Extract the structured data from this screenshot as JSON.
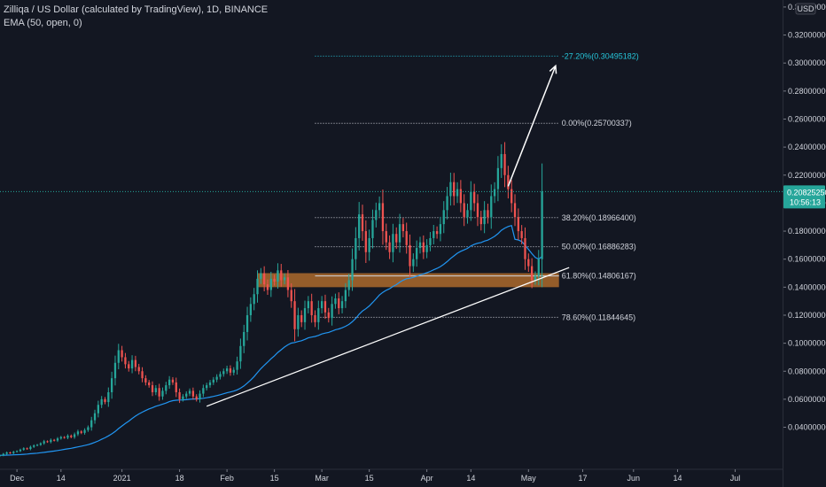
{
  "legend": {
    "title": "Zilliqa / US Dollar (calculated by TradingView), 1D, BINANCE",
    "indicator": "EMA (50, open, 0)"
  },
  "chart_data": {
    "type": "candlestick",
    "currency": "USD",
    "ylim": [
      0.01,
      0.345
    ],
    "y_ticks": [
      {
        "v": 0.04,
        "label": "0.04000000"
      },
      {
        "v": 0.06,
        "label": "0.06000000"
      },
      {
        "v": 0.08,
        "label": "0.08000000"
      },
      {
        "v": 0.1,
        "label": "0.10000000"
      },
      {
        "v": 0.12,
        "label": "0.12000000"
      },
      {
        "v": 0.14,
        "label": "0.14000000"
      },
      {
        "v": 0.16,
        "label": "0.16000000"
      },
      {
        "v": 0.18,
        "label": "0.18000000"
      },
      {
        "v": 0.2,
        "label": "0.20000000"
      },
      {
        "v": 0.22,
        "label": "0.22000000"
      },
      {
        "v": 0.24,
        "label": "0.24000000"
      },
      {
        "v": 0.26,
        "label": "0.26000000"
      },
      {
        "v": 0.28,
        "label": "0.28000000"
      },
      {
        "v": 0.3,
        "label": "0.30000000"
      },
      {
        "v": 0.32,
        "label": "0.32000000"
      },
      {
        "v": 0.34,
        "label": "0.34000000"
      }
    ],
    "x_range": [
      "2020-11-26",
      "2021-07-15"
    ],
    "x_ticks": [
      {
        "date": "2020-12-01",
        "label": "Dec"
      },
      {
        "date": "2020-12-14",
        "label": "14"
      },
      {
        "date": "2021-01-01",
        "label": "2021"
      },
      {
        "date": "2021-01-18",
        "label": "18"
      },
      {
        "date": "2021-02-01",
        "label": "Feb"
      },
      {
        "date": "2021-02-15",
        "label": "15"
      },
      {
        "date": "2021-03-01",
        "label": "Mar"
      },
      {
        "date": "2021-03-15",
        "label": "15"
      },
      {
        "date": "2021-04-01",
        "label": "Apr"
      },
      {
        "date": "2021-04-14",
        "label": "14"
      },
      {
        "date": "2021-05-01",
        "label": "May"
      },
      {
        "date": "2021-05-17",
        "label": "17"
      },
      {
        "date": "2021-06-01",
        "label": "Jun"
      },
      {
        "date": "2021-06-14",
        "label": "14"
      },
      {
        "date": "2021-07-01",
        "label": "Jul"
      }
    ],
    "start_date": "2020-11-26",
    "closes": [
      0.02,
      0.021,
      0.022,
      0.0215,
      0.0225,
      0.023,
      0.024,
      0.025,
      0.0245,
      0.026,
      0.027,
      0.0275,
      0.0285,
      0.03,
      0.0295,
      0.031,
      0.0305,
      0.032,
      0.033,
      0.0325,
      0.034,
      0.033,
      0.035,
      0.037,
      0.036,
      0.038,
      0.04,
      0.045,
      0.05,
      0.056,
      0.06,
      0.058,
      0.065,
      0.075,
      0.086,
      0.095,
      0.09,
      0.085,
      0.082,
      0.088,
      0.083,
      0.08,
      0.075,
      0.072,
      0.07,
      0.065,
      0.068,
      0.062,
      0.066,
      0.07,
      0.074,
      0.072,
      0.065,
      0.06,
      0.062,
      0.064,
      0.066,
      0.062,
      0.06,
      0.064,
      0.068,
      0.07,
      0.072,
      0.074,
      0.076,
      0.078,
      0.08,
      0.082,
      0.079,
      0.081,
      0.087,
      0.098,
      0.108,
      0.12,
      0.128,
      0.135,
      0.146,
      0.15,
      0.142,
      0.138,
      0.146,
      0.144,
      0.152,
      0.145,
      0.147,
      0.138,
      0.13,
      0.11,
      0.12,
      0.115,
      0.125,
      0.13,
      0.12,
      0.115,
      0.125,
      0.13,
      0.122,
      0.118,
      0.128,
      0.132,
      0.125,
      0.13,
      0.138,
      0.145,
      0.16,
      0.175,
      0.192,
      0.18,
      0.165,
      0.175,
      0.188,
      0.195,
      0.2,
      0.18,
      0.172,
      0.165,
      0.178,
      0.172,
      0.185,
      0.18,
      0.17,
      0.155,
      0.16,
      0.168,
      0.172,
      0.165,
      0.17,
      0.175,
      0.18,
      0.178,
      0.185,
      0.195,
      0.205,
      0.215,
      0.205,
      0.21,
      0.2,
      0.19,
      0.195,
      0.208,
      0.2,
      0.19,
      0.185,
      0.195,
      0.19,
      0.205,
      0.21,
      0.225,
      0.235,
      0.22,
      0.21,
      0.2,
      0.19,
      0.18,
      0.175,
      0.16,
      0.155,
      0.145,
      0.148,
      0.16,
      0.2083
    ],
    "ema50": [
      0.02,
      0.02,
      0.0201,
      0.0202,
      0.0203,
      0.0204,
      0.0205,
      0.0207,
      0.0209,
      0.0211,
      0.0213,
      0.0215,
      0.0218,
      0.0221,
      0.0224,
      0.0227,
      0.023,
      0.0234,
      0.0238,
      0.0242,
      0.0246,
      0.025,
      0.0255,
      0.026,
      0.0265,
      0.027,
      0.0276,
      0.0283,
      0.0292,
      0.0302,
      0.0314,
      0.0325,
      0.0338,
      0.0353,
      0.037,
      0.0391,
      0.0409,
      0.0427,
      0.0444,
      0.0463,
      0.048,
      0.0495,
      0.0508,
      0.052,
      0.0531,
      0.054,
      0.055,
      0.0557,
      0.0565,
      0.0573,
      0.0583,
      0.059,
      0.0593,
      0.0594,
      0.0595,
      0.0597,
      0.06,
      0.0602,
      0.0602,
      0.0604,
      0.0607,
      0.0611,
      0.0615,
      0.062,
      0.0626,
      0.0632,
      0.0639,
      0.0646,
      0.0652,
      0.0658,
      0.0667,
      0.0679,
      0.0695,
      0.0715,
      0.0737,
      0.0762,
      0.079,
      0.0818,
      0.0843,
      0.0865,
      0.0889,
      0.091,
      0.0934,
      0.0953,
      0.0973,
      0.0989,
      0.1001,
      0.1005,
      0.1012,
      0.1018,
      0.1027,
      0.1038,
      0.1044,
      0.1048,
      0.1056,
      0.1066,
      0.1072,
      0.1077,
      0.1086,
      0.1096,
      0.1102,
      0.111,
      0.1121,
      0.1134,
      0.1153,
      0.1177,
      0.1207,
      0.123,
      0.1246,
      0.1266,
      0.1291,
      0.1317,
      0.1344,
      0.1363,
      0.1378,
      0.1389,
      0.1405,
      0.1418,
      0.1436,
      0.145,
      0.146,
      0.1464,
      0.147,
      0.1478,
      0.1488,
      0.1495,
      0.1503,
      0.1513,
      0.1524,
      0.1534,
      0.1547,
      0.1563,
      0.1583,
      0.1605,
      0.1623,
      0.1642,
      0.1656,
      0.1666,
      0.1677,
      0.1694,
      0.1706,
      0.1714,
      0.1719,
      0.1729,
      0.1736,
      0.1749,
      0.1763,
      0.1782,
      0.1806,
      0.1822,
      0.1833,
      0.184,
      0.1742,
      0.1737,
      0.1726,
      0.17,
      0.167,
      0.164,
      0.1612,
      0.16,
      0.162
    ],
    "fib_levels": [
      {
        "pct": "-27.20%",
        "value": 0.30495182,
        "label": "-27.20%(0.30495182)",
        "color": "#26c6da",
        "dotted": true
      },
      {
        "pct": "0.00%",
        "value": 0.25700337,
        "label": "0.00%(0.25700337)",
        "color": "#d1d4dc",
        "dotted": true
      },
      {
        "pct": "38.20%",
        "value": 0.189664,
        "label": "38.20%(0.18966400)",
        "color": "#d1d4dc",
        "dotted": true
      },
      {
        "pct": "50.00%",
        "value": 0.16886283,
        "label": "50.00%(0.16886283)",
        "color": "#d1d4dc",
        "dotted": true
      },
      {
        "pct": "61.80%",
        "value": 0.14806167,
        "label": "61.80%(0.14806167)",
        "color": "#d1d4dc",
        "dotted": false
      },
      {
        "pct": "78.60%",
        "value": 0.11844645,
        "label": "78.60%(0.11844645)",
        "color": "#d1d4dc",
        "dotted": true
      }
    ],
    "support_zone": {
      "low": 0.14,
      "high": 0.15,
      "from": "2021-02-10",
      "to": "2021-05-10"
    },
    "trendline": {
      "from": {
        "date": "2021-01-26",
        "value": 0.055
      },
      "to": {
        "date": "2021-05-13",
        "value": 0.154
      }
    },
    "arrow": {
      "from": {
        "date": "2021-04-25",
        "value": 0.212
      },
      "to": {
        "date": "2021-05-09",
        "value": 0.298
      }
    },
    "current_price": {
      "value": 0.2082525,
      "label": "0.20825250",
      "countdown": "10:56:13"
    },
    "colors": {
      "up": "#26a69a",
      "down": "#ef5350",
      "ema": "#2196f3",
      "zone": "#c8782e",
      "bg": "#131722",
      "text": "#d1d4dc",
      "grid": "#2a2e39"
    }
  }
}
